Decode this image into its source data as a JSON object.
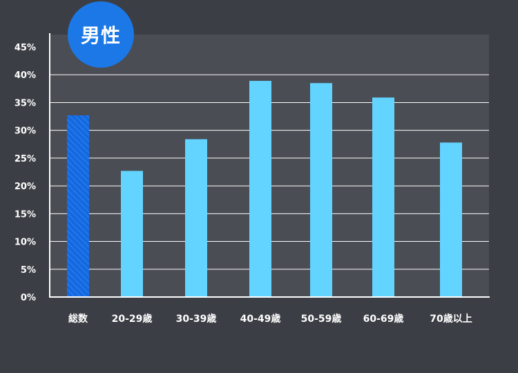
{
  "badge": {
    "label": "男性",
    "color": "#1b78e6"
  },
  "chart_data": {
    "type": "bar",
    "title": "",
    "xlabel": "",
    "ylabel": "",
    "categories": [
      "総数",
      "20-29歳",
      "30-39歳",
      "40-49歳",
      "50-59歳",
      "60-69歳",
      "70歳以上"
    ],
    "values": [
      32.7,
      22.7,
      28.4,
      38.9,
      38.5,
      35.9,
      27.8
    ],
    "ylim": [
      0,
      45
    ],
    "yticks": [
      0,
      5,
      10,
      15,
      20,
      25,
      30,
      35,
      40,
      45
    ],
    "ytick_labels": [
      "0%",
      "5%",
      "10%",
      "15%",
      "20%",
      "25%",
      "30%",
      "35%",
      "40%",
      "45%"
    ],
    "grid": true,
    "colors": {
      "highlight": "#1668e0",
      "bar": "#62d4ff",
      "plot_bg": "#4a4d53",
      "grid": "#ffffff",
      "axis": "#ffffff",
      "text": "#ffffff"
    },
    "highlight_index": 0
  }
}
